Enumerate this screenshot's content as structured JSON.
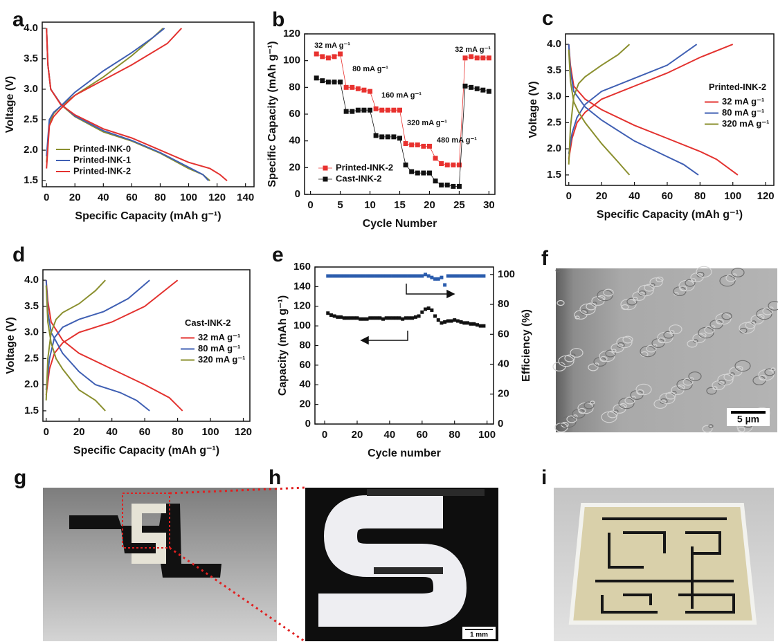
{
  "chart_data": [
    {
      "panel": "a",
      "type": "line",
      "markers": false,
      "x_label": "Specific Capacity (mAh g⁻¹)",
      "y_label": "Voltage (V)",
      "xlim": [
        -3,
        146
      ],
      "ylim": [
        1.4,
        4.1
      ],
      "xticks": [
        0,
        20,
        40,
        60,
        80,
        100,
        120,
        140
      ],
      "yticks": [
        1.5,
        {
          "value": 2,
          "label": "2.0"
        },
        2.5,
        {
          "value": 3,
          "label": "3.0"
        },
        3.5,
        {
          "value": 4,
          "label": "4.0"
        }
      ],
      "legend": "lower left",
      "series": [
        {
          "name": "Printed-INK-0",
          "color": "#8a8f2e",
          "x": [
            0,
            2,
            5,
            10,
            20,
            40,
            60,
            75,
            82,
            null,
            0,
            1,
            3,
            10,
            20,
            40,
            60,
            80,
            100,
            110,
            115
          ],
          "values": [
            1.8,
            2.45,
            2.6,
            2.72,
            2.9,
            3.2,
            3.55,
            3.85,
            4.0,
            null,
            4.0,
            3.4,
            3.0,
            2.75,
            2.55,
            2.3,
            2.15,
            1.95,
            1.7,
            1.6,
            1.5
          ]
        },
        {
          "name": "Printed-INK-1",
          "color": "#3f5fb3",
          "x": [
            0,
            2,
            5,
            10,
            20,
            40,
            60,
            75,
            83,
            null,
            0,
            1,
            3,
            10,
            20,
            40,
            60,
            80,
            100,
            110,
            114
          ],
          "values": [
            1.9,
            2.5,
            2.62,
            2.72,
            2.95,
            3.3,
            3.6,
            3.85,
            4.0,
            null,
            4.0,
            3.4,
            3.0,
            2.76,
            2.56,
            2.32,
            2.16,
            1.96,
            1.72,
            1.6,
            1.5
          ]
        },
        {
          "name": "Printed-INK-2",
          "color": "#e3322f",
          "x": [
            0,
            2,
            5,
            10,
            20,
            40,
            60,
            85,
            95,
            null,
            0,
            1,
            3,
            10,
            20,
            40,
            60,
            80,
            100,
            115,
            122,
            127
          ],
          "values": [
            1.7,
            2.4,
            2.55,
            2.68,
            2.9,
            3.15,
            3.4,
            3.75,
            4.0,
            null,
            4.0,
            3.4,
            3.0,
            2.75,
            2.58,
            2.35,
            2.2,
            2.0,
            1.8,
            1.7,
            1.6,
            1.5
          ]
        }
      ]
    },
    {
      "panel": "b",
      "type": "line",
      "markers": true,
      "x_label": "Cycle Number",
      "y_label": "Specific Capacity (mAh g⁻¹)",
      "xlim": [
        -1,
        31
      ],
      "ylim": [
        0,
        120
      ],
      "xticks": [
        0,
        5,
        10,
        15,
        20,
        25,
        30
      ],
      "yticks": [
        0,
        20,
        40,
        60,
        80,
        100,
        120
      ],
      "legend": "lower left",
      "annotations": [
        "32 mA g⁻¹",
        "80 mA g⁻¹",
        "160 mA g⁻¹",
        "320 mA g⁻¹",
        "480 mA g⁻¹",
        "32 mA g⁻¹"
      ],
      "series": [
        {
          "name": "Printed-INK-2",
          "color": "#e8322f",
          "x": [
            1,
            2,
            3,
            4,
            5,
            6,
            7,
            8,
            9,
            10,
            11,
            12,
            13,
            14,
            15,
            16,
            17,
            18,
            19,
            20,
            21,
            22,
            23,
            24,
            25,
            26,
            27,
            28,
            29,
            30
          ],
          "values": [
            105,
            103,
            102,
            103,
            105,
            80,
            80,
            79,
            78,
            77,
            64,
            63,
            63,
            63,
            63,
            38,
            37,
            37,
            36,
            36,
            27,
            23,
            22,
            22,
            22,
            102,
            103,
            102,
            102,
            102
          ]
        },
        {
          "name": "Cast-INK-2",
          "color": "#111111",
          "x": [
            1,
            2,
            3,
            4,
            5,
            6,
            7,
            8,
            9,
            10,
            11,
            12,
            13,
            14,
            15,
            16,
            17,
            18,
            19,
            20,
            21,
            22,
            23,
            24,
            25,
            26,
            27,
            28,
            29,
            30
          ],
          "values": [
            87,
            85,
            84,
            84,
            84,
            62,
            62,
            63,
            63,
            63,
            44,
            43,
            43,
            43,
            42,
            22,
            17,
            16,
            16,
            16,
            10,
            7,
            7,
            6,
            6,
            81,
            80,
            79,
            78,
            77
          ]
        }
      ]
    },
    {
      "panel": "c",
      "type": "line",
      "markers": false,
      "x_label": "Specific Capacity (mAh g⁻¹)",
      "y_label": "Voltage (V)",
      "xlim": [
        -2,
        125
      ],
      "ylim": [
        1.3,
        4.2
      ],
      "xticks": [
        0,
        20,
        40,
        60,
        80,
        100,
        120
      ],
      "yticks": [
        1.5,
        {
          "value": 2,
          "label": "2.0"
        },
        2.5,
        {
          "value": 3,
          "label": "3.0"
        },
        3.5,
        {
          "value": 4,
          "label": "4.0"
        }
      ],
      "legend": "center right",
      "legend_title": "Printed-INK-2",
      "series": [
        {
          "name": "32 mA g⁻¹",
          "color": "#e3322f",
          "x": [
            0,
            2,
            5,
            10,
            20,
            40,
            60,
            80,
            100,
            null,
            0,
            1,
            3,
            10,
            20,
            40,
            60,
            80,
            90,
            103
          ],
          "values": [
            1.8,
            2.2,
            2.5,
            2.7,
            2.95,
            3.2,
            3.45,
            3.75,
            4.0,
            null,
            4.0,
            3.6,
            3.2,
            2.95,
            2.75,
            2.45,
            2.2,
            1.95,
            1.8,
            1.5
          ]
        },
        {
          "name": "80 mA g⁻¹",
          "color": "#3f5fb3",
          "x": [
            0,
            2,
            5,
            10,
            20,
            40,
            60,
            78,
            null,
            0,
            1,
            3,
            10,
            20,
            40,
            60,
            70,
            79
          ],
          "values": [
            1.9,
            2.3,
            2.6,
            2.85,
            3.1,
            3.35,
            3.6,
            4.0,
            null,
            4.0,
            3.5,
            3.1,
            2.8,
            2.55,
            2.15,
            1.85,
            1.7,
            1.5
          ]
        },
        {
          "name": "320 mA g⁻¹",
          "color": "#8a8f2e",
          "x": [
            0,
            1,
            3,
            6,
            10,
            20,
            30,
            37,
            null,
            0,
            1,
            3,
            6,
            10,
            20,
            30,
            37
          ],
          "values": [
            1.7,
            2.4,
            3.0,
            3.25,
            3.38,
            3.6,
            3.8,
            4.0,
            null,
            3.9,
            3.3,
            2.9,
            2.7,
            2.5,
            2.1,
            1.75,
            1.5
          ]
        }
      ]
    },
    {
      "panel": "d",
      "type": "line",
      "markers": false,
      "x_label": "Specific Capacity (mAh g⁻¹)",
      "y_label": "Voltage (V)",
      "xlim": [
        -2,
        124
      ],
      "ylim": [
        1.3,
        4.2
      ],
      "xticks": [
        0,
        20,
        40,
        60,
        80,
        100,
        120
      ],
      "yticks": [
        1.5,
        {
          "value": 2,
          "label": "2.0"
        },
        2.5,
        {
          "value": 3,
          "label": "3.0"
        },
        3.5,
        {
          "value": 4,
          "label": "4.0"
        }
      ],
      "legend": "center right",
      "legend_title": "Cast-INK-2",
      "series": [
        {
          "name": "32 mA g⁻¹",
          "color": "#e3322f",
          "x": [
            0,
            2,
            5,
            10,
            20,
            40,
            60,
            80,
            null,
            0,
            1,
            3,
            10,
            20,
            40,
            60,
            75,
            83
          ],
          "values": [
            1.8,
            2.3,
            2.6,
            2.8,
            3.0,
            3.2,
            3.5,
            4.0,
            null,
            4.0,
            3.6,
            3.2,
            2.85,
            2.6,
            2.3,
            2.0,
            1.75,
            1.5
          ]
        },
        {
          "name": "80 mA g⁻¹",
          "color": "#3f5fb3",
          "x": [
            0,
            2,
            5,
            10,
            20,
            35,
            50,
            63,
            null,
            0,
            1,
            3,
            10,
            20,
            30,
            45,
            55,
            63
          ],
          "values": [
            1.9,
            2.5,
            2.9,
            3.1,
            3.25,
            3.4,
            3.65,
            4.0,
            null,
            4.0,
            3.4,
            3.0,
            2.6,
            2.25,
            2.0,
            1.85,
            1.7,
            1.5
          ]
        },
        {
          "name": "320 mA g⁻¹",
          "color": "#8a8f2e",
          "x": [
            0,
            1,
            3,
            6,
            10,
            20,
            30,
            36,
            null,
            0,
            1,
            3,
            6,
            10,
            20,
            30,
            36
          ],
          "values": [
            1.7,
            2.5,
            3.0,
            3.25,
            3.38,
            3.55,
            3.8,
            4.0,
            null,
            3.9,
            3.2,
            2.8,
            2.5,
            2.3,
            1.9,
            1.7,
            1.5
          ]
        }
      ]
    },
    {
      "panel": "e",
      "type": "scatter",
      "x_label": "Cycle number",
      "y_label": "Capacity (mAh g⁻¹)",
      "y2_label": "Efficiency (%)",
      "xlim": [
        -6,
        104
      ],
      "ylim": [
        0,
        160
      ],
      "y2lim": [
        0,
        105
      ],
      "xticks": [
        0,
        20,
        40,
        60,
        80,
        100
      ],
      "yticks": [
        0,
        20,
        40,
        60,
        80,
        100,
        120,
        140,
        160
      ],
      "y2ticks": [
        0,
        20,
        40,
        60,
        80,
        100
      ],
      "series": [
        {
          "color": "#111111",
          "x": [
            2,
            4,
            6,
            8,
            10,
            12,
            14,
            16,
            18,
            20,
            22,
            24,
            26,
            28,
            30,
            32,
            34,
            36,
            38,
            40,
            42,
            44,
            46,
            48,
            50,
            52,
            54,
            56,
            58,
            60,
            62,
            64,
            66,
            68,
            70,
            72,
            74,
            76,
            78,
            80,
            82,
            84,
            86,
            88,
            90,
            92,
            94,
            96,
            98
          ],
          "values": [
            113,
            111,
            110,
            109,
            109,
            108,
            108,
            108,
            108,
            108,
            107,
            107,
            107,
            108,
            108,
            108,
            108,
            107,
            108,
            108,
            108,
            108,
            108,
            107,
            108,
            108,
            108,
            109,
            110,
            114,
            117,
            118,
            116,
            110,
            106,
            103,
            104,
            105,
            105,
            106,
            105,
            104,
            103,
            103,
            102,
            102,
            101,
            100,
            100
          ]
        },
        {
          "color": "#2a5cad",
          "axis": "y2",
          "x": [
            2,
            4,
            6,
            8,
            10,
            12,
            14,
            16,
            18,
            20,
            22,
            24,
            26,
            28,
            30,
            32,
            34,
            36,
            38,
            40,
            42,
            44,
            46,
            48,
            50,
            52,
            54,
            56,
            58,
            60,
            62,
            64,
            66,
            68,
            70,
            72,
            74,
            76,
            78,
            80,
            82,
            84,
            86,
            88,
            90,
            92,
            94,
            96,
            98
          ],
          "values": [
            99,
            99,
            99,
            99,
            99,
            99,
            99,
            99,
            99,
            99,
            99,
            99,
            99,
            99,
            99,
            99,
            99,
            99,
            99,
            99,
            99,
            99,
            99,
            99,
            99,
            99,
            99,
            99,
            99,
            99,
            100,
            99,
            98,
            97,
            97,
            98,
            93,
            99,
            99,
            99,
            99,
            99,
            99,
            99,
            99,
            99,
            99,
            99,
            99
          ]
        }
      ]
    }
  ],
  "images": [
    {
      "panel": "f",
      "scale_bar": "5 µm"
    },
    {
      "panel": "g"
    },
    {
      "panel": "h",
      "scale_bar": "1 mm"
    },
    {
      "panel": "i"
    }
  ]
}
